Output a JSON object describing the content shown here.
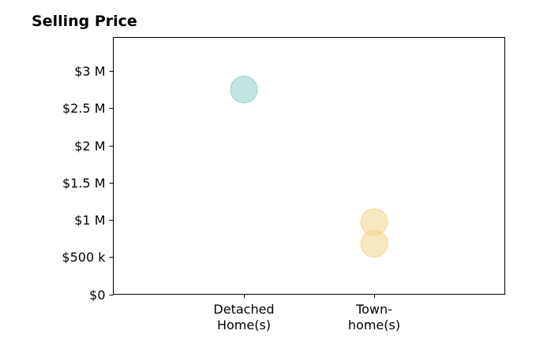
{
  "chart_data": {
    "type": "scatter",
    "title": "Selling Price",
    "xlabel": "",
    "ylabel": "",
    "categories": [
      [
        "Detached",
        "Home(s)"
      ],
      [
        "Town-",
        "home(s)"
      ]
    ],
    "ylim": [
      0,
      3450000
    ],
    "yticks": [
      0,
      500000,
      1000000,
      1500000,
      2000000,
      2500000,
      3000000
    ],
    "ytick_labels": [
      "$0",
      "$500 k",
      "$1 M",
      "$1.5 M",
      "$2 M",
      "$2.5 M",
      "$3 M"
    ],
    "grid": false,
    "points": [
      {
        "category": 0,
        "y": 2750000,
        "color": "#8ecfc9"
      },
      {
        "category": 1,
        "y": 970000,
        "color": "#f3d58e"
      },
      {
        "category": 1,
        "y": 680000,
        "color": "#f3d58e"
      }
    ]
  }
}
